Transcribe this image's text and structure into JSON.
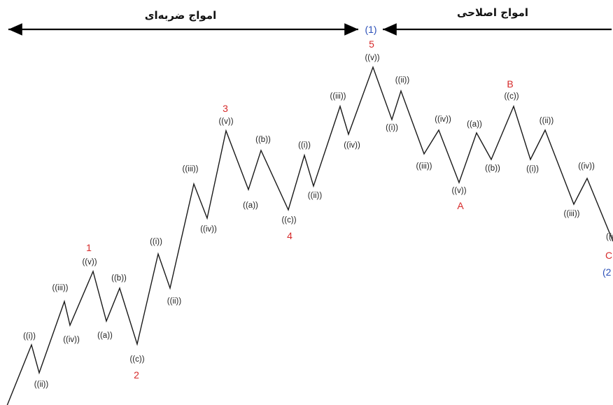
{
  "headers": {
    "impulse": "امواج ضربه‌ای",
    "corrective": "امواج اصلاحی"
  },
  "markers": {
    "top": "(1)",
    "bottom": "(2"
  },
  "major_labels": [
    "1",
    "2",
    "3",
    "4",
    "5",
    "A",
    "B",
    "C"
  ],
  "wave_labels": [
    "((i))",
    "((ii))",
    "((iii))",
    "((iv))",
    "((v))",
    "((a))",
    "((b))",
    "((c))",
    "((i))",
    "((ii))",
    "((iii))",
    "((iv))",
    "((v))",
    "((a))",
    "((b))",
    "((c))",
    "((i))",
    "((ii))",
    "((iii))",
    "((iv))",
    "((v))",
    "((i))",
    "((ii))",
    "((iii))",
    "((iv))",
    "((v))",
    "((a))",
    "((b))",
    "((c))",
    "((i))",
    "((ii))",
    "((iii))",
    "((iv))",
    "((v))"
  ],
  "colors": {
    "line": "#1a1a1a",
    "major": "#d62a2a",
    "marker": "#2b4fb8"
  }
}
